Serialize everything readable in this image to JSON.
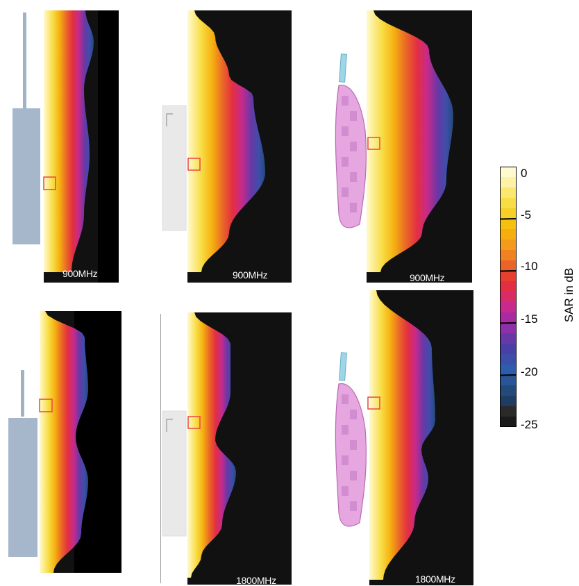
{
  "colorbar": {
    "title": "SAR in dB",
    "ticks": [
      "0",
      "-5",
      "-10",
      "-15",
      "-20",
      "-25"
    ],
    "colors": [
      "#fffad0",
      "#fdf2a8",
      "#fbe870",
      "#f8dd45",
      "#f6cf2a",
      "#f5c010",
      "#f6ad0e",
      "#f39b1c",
      "#ef8322",
      "#ea6428",
      "#e8402f",
      "#e32f41",
      "#d82c66",
      "#c72a8c",
      "#a92ba2",
      "#8c31a8",
      "#6838a6",
      "#4a3fa7",
      "#3d4ea9",
      "#2b5fac",
      "#2a5596",
      "#244a7c",
      "#1f3d62",
      "#2a2a2a",
      "#1a1a1a"
    ],
    "emphasis_every": 5
  },
  "panels": [
    {
      "id": "dipole-900",
      "label": "900MHz",
      "device": "dipole",
      "profile": "dipole900"
    },
    {
      "id": "generic-phone-900",
      "label": "900MHz",
      "device": "generic-phone",
      "profile": "phone900"
    },
    {
      "id": "realistic-phone-900",
      "label": "900MHz",
      "device": "realistic-phone",
      "profile": "real900"
    },
    {
      "id": "dipole-1800",
      "label": "1800MHz",
      "device": "dipole",
      "profile": "dipole1800"
    },
    {
      "id": "generic-phone-1800",
      "label": "1800MHz",
      "device": "generic-phone",
      "profile": "phone1800"
    },
    {
      "id": "realistic-phone-1800",
      "label": "1800MHz",
      "device": "realistic-phone",
      "profile": "real1800"
    }
  ]
}
